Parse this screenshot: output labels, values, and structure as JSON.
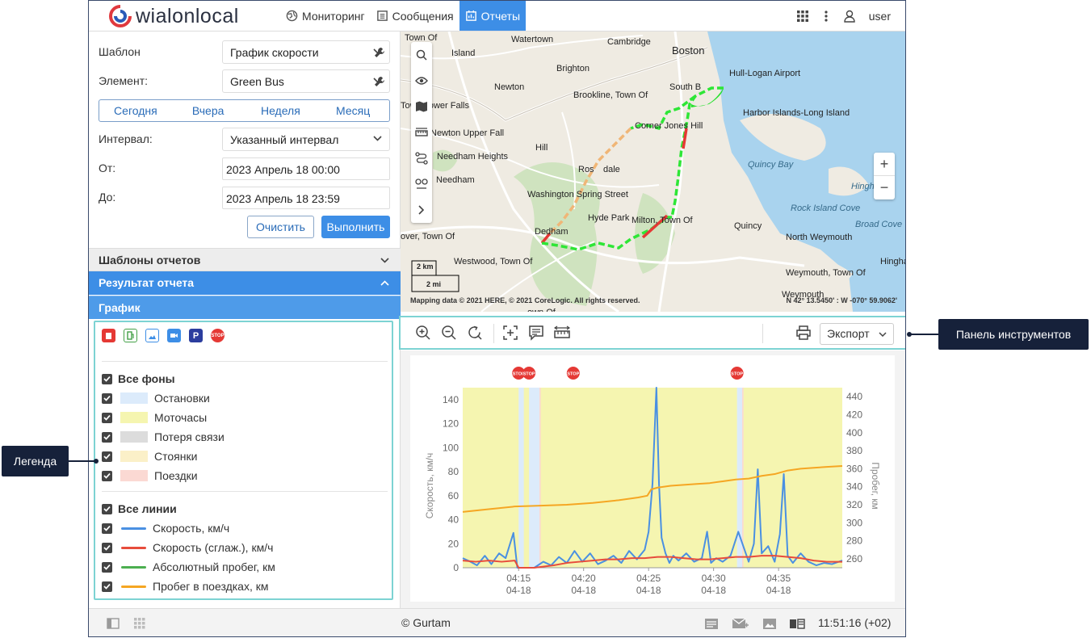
{
  "header": {
    "logo_text": "wialonlocal",
    "nav": [
      {
        "label": "Мониторинг",
        "icon": "globe-icon",
        "active": false
      },
      {
        "label": "Сообщения",
        "icon": "messages-icon",
        "active": false
      },
      {
        "label": "Отчеты",
        "icon": "reports-icon",
        "active": true
      }
    ],
    "user": "user"
  },
  "form": {
    "template_label": "Шаблон",
    "template_value": "График скорости",
    "element_label": "Элемент:",
    "element_value": "Green Bus",
    "periods": [
      "Сегодня",
      "Вчера",
      "Неделя",
      "Месяц"
    ],
    "interval_label": "Интервал:",
    "interval_value": "Указанный интервал",
    "from_label": "От:",
    "from_value": "2023 Апрель 18 00:00",
    "to_label": "До:",
    "to_value": "2023 Апрель 18 23:59",
    "clear_label": "Очистить",
    "execute_label": "Выполнить"
  },
  "accordion": {
    "templates_label": "Шаблоны отчетов",
    "result_label": "Результат отчета",
    "chart_label": "График"
  },
  "legend": {
    "all_backgrounds": "Все фоны",
    "backgrounds": [
      {
        "label": "Остановки",
        "color": "#dcebfb"
      },
      {
        "label": "Моточасы",
        "color": "#f5f5b0"
      },
      {
        "label": "Потеря связи",
        "color": "#dcdcdc"
      },
      {
        "label": "Стоянки",
        "color": "#fbf0c8"
      },
      {
        "label": "Поездки",
        "color": "#fbd9d3"
      }
    ],
    "all_lines": "Все линии",
    "lines": [
      {
        "label": "Скорость, км/ч",
        "color": "#4a90e2"
      },
      {
        "label": "Скорость (сглаж.), км/ч",
        "color": "#e74c3c"
      },
      {
        "label": "Абсолютный пробег, км",
        "color": "#4caf50"
      },
      {
        "label": "Пробег в поездках, км",
        "color": "#f5a623"
      }
    ]
  },
  "map": {
    "labels": [
      {
        "t": "Town Of"
      },
      {
        "t": "Watertown"
      },
      {
        "t": "Cambridge"
      },
      {
        "t": "Boston"
      },
      {
        "t": "Island"
      },
      {
        "t": "Brighton"
      },
      {
        "t": "Hull-Logan Airport"
      },
      {
        "t": "Newton"
      },
      {
        "t": "South B"
      },
      {
        "t": "Brookline, Town Of"
      },
      {
        "t": "Town Lower Falls"
      },
      {
        "t": "Harbor Islands-Long Island"
      },
      {
        "t": "Newton Upper Fall"
      },
      {
        "t": "Corner Jones Hill"
      },
      {
        "t": "Hill"
      },
      {
        "t": "Needham Heights"
      },
      {
        "t": "Quincy Bay"
      },
      {
        "t": "Ros"
      },
      {
        "t": "dale"
      },
      {
        "t": "Needham"
      },
      {
        "t": "Hingham"
      },
      {
        "t": "Washington Spring Street"
      },
      {
        "t": "Hyde Park"
      },
      {
        "t": "Milton, Town Of"
      },
      {
        "t": "Rock Island Cove"
      },
      {
        "t": "Quincy"
      },
      {
        "t": "Broad Cove"
      },
      {
        "t": "Dedham"
      },
      {
        "t": "North Weymouth"
      },
      {
        "t": "over, Town Of"
      },
      {
        "t": "Westwood, Town Of"
      },
      {
        "t": "Hingham"
      },
      {
        "t": "Weymouth, Town Of"
      },
      {
        "t": "Weymouth"
      },
      {
        "t": "own Of"
      }
    ],
    "scale_km": "2 km",
    "scale_mi": "2 mi",
    "attribution": "Mapping data © 2021 HERE, © 2021 CoreLogic. All rights reserved.",
    "coords": "N 42° 13.5450' : W -070° 59.9062'"
  },
  "toolbar": {
    "export_label": "Экспорт"
  },
  "chart_data": {
    "type": "line",
    "ylabel": "Скорость, км/ч",
    "y2label": "Пробег, км",
    "ylim": [
      0,
      150
    ],
    "y2lim": [
      250,
      450
    ],
    "yticks": [
      "0",
      "20",
      "40",
      "60",
      "80",
      "100",
      "120",
      "140"
    ],
    "y2ticks": [
      "260",
      "280",
      "300",
      "320",
      "340",
      "360",
      "380",
      "400",
      "420",
      "440"
    ],
    "xticks": [
      {
        "time": "04:15",
        "date": "04-18"
      },
      {
        "time": "04:20",
        "date": "04-18"
      },
      {
        "time": "04:25",
        "date": "04-18"
      },
      {
        "time": "04:30",
        "date": "04-18"
      },
      {
        "time": "04:35",
        "date": "04-18"
      }
    ],
    "x_range_min": [
      0,
      29.2
    ],
    "stop_markers_min": [
      4.3,
      5.1,
      8.5,
      21.1
    ],
    "stop_label": "STOP",
    "series": [
      {
        "name": "Скорость, км/ч",
        "color": "#4a90e2",
        "x": [
          0,
          0.6,
          1.1,
          1.7,
          2.2,
          2.8,
          3.3,
          3.9,
          4.2,
          4.6,
          5.5,
          6.2,
          6.8,
          7.4,
          8.0,
          8.6,
          9.2,
          9.8,
          10.4,
          11.0,
          11.6,
          12.2,
          12.8,
          13.4,
          14.0,
          14.3,
          14.6,
          14.9,
          15.1,
          15.3,
          15.6,
          15.9,
          16.2,
          16.6,
          17.2,
          17.8,
          18.4,
          18.8,
          19.1,
          19.5,
          20.0,
          20.6,
          21.2,
          22.0,
          22.4,
          22.7,
          23.0,
          23.5,
          24.0,
          24.4,
          24.7,
          25.0,
          25.4,
          26.0,
          26.6,
          27.2,
          27.8,
          28.4,
          29.2
        ],
        "y": [
          8,
          5,
          2,
          10,
          3,
          12,
          8,
          29,
          0,
          0,
          0,
          5,
          2,
          9,
          4,
          14,
          5,
          12,
          3,
          6,
          10,
          4,
          14,
          7,
          15,
          30,
          70,
          150,
          70,
          25,
          12,
          4,
          10,
          6,
          12,
          5,
          8,
          30,
          4,
          8,
          5,
          10,
          30,
          5,
          20,
          82,
          12,
          18,
          5,
          28,
          78,
          10,
          4,
          12,
          5,
          2,
          4,
          3,
          6
        ]
      },
      {
        "name": "Скорость (сглаж.), км/ч",
        "color": "#e74c3c",
        "x": [
          0,
          1,
          2,
          3,
          4,
          4.3,
          5.5,
          7,
          8,
          9,
          10,
          11,
          12,
          13,
          14,
          15,
          16,
          17,
          18,
          19,
          20,
          21,
          22,
          23,
          24,
          25,
          26,
          27,
          28,
          29.2
        ],
        "y": [
          6,
          5,
          6,
          5,
          6,
          0,
          0,
          2,
          4,
          5,
          6,
          7,
          7,
          8,
          8,
          9,
          9,
          8,
          7,
          7,
          8,
          9,
          9,
          10,
          10,
          9,
          8,
          6,
          5,
          5
        ]
      },
      {
        "name": "Пробег в поездках, км",
        "color": "#f5a623",
        "axis": "right",
        "x": [
          0,
          2,
          4,
          6,
          8,
          10,
          12,
          13.5,
          14.2,
          14.5,
          15,
          16,
          17,
          18,
          19,
          20,
          21,
          22,
          23,
          24,
          25,
          26,
          27,
          28,
          29.2
        ],
        "y": [
          312,
          315,
          318,
          319,
          320,
          322,
          325,
          328,
          330,
          337,
          339,
          341,
          342,
          343,
          344,
          346,
          348,
          349,
          352,
          354,
          358,
          360,
          361,
          362,
          363
        ]
      }
    ],
    "backgrounds": [
      {
        "type": "motohours",
        "from": 0,
        "to": 29.2,
        "color": "#f5f5b0"
      },
      {
        "type": "stops",
        "from": 4.3,
        "to": 4.7,
        "color": "#dcebfb"
      },
      {
        "type": "stops",
        "from": 5.1,
        "to": 5.9,
        "color": "#dcebfb"
      },
      {
        "type": "trips",
        "from": 5.9,
        "to": 6.0,
        "color": "#fbd9d3"
      },
      {
        "type": "stops",
        "from": 21.1,
        "to": 21.5,
        "color": "#dcebfb"
      },
      {
        "type": "trips",
        "from": 21.5,
        "to": 21.6,
        "color": "#fbd9d3"
      }
    ]
  },
  "status": {
    "copyright": "© Gurtam",
    "time": "11:51:16 (+02)"
  },
  "callouts": {
    "legend": "Легенда",
    "toolbar": "Панель инструментов"
  }
}
